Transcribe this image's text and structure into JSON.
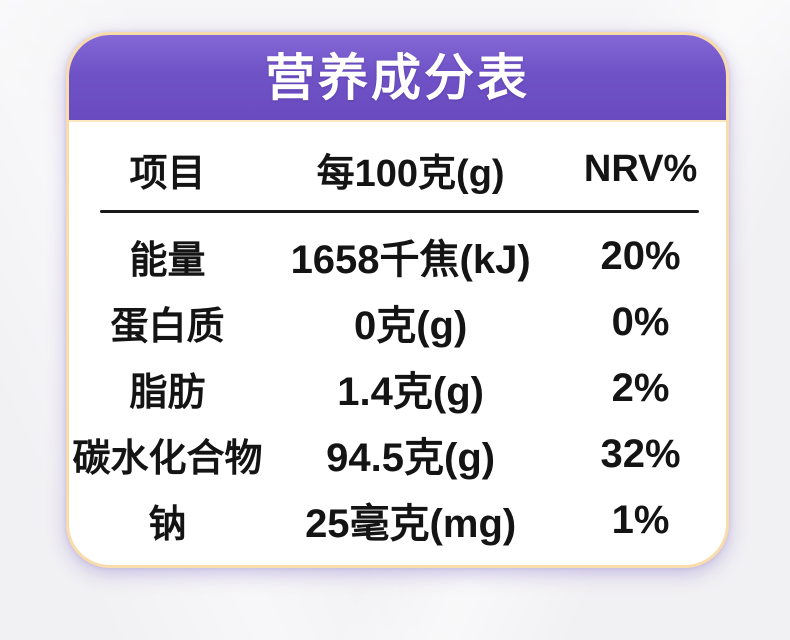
{
  "header": {
    "title": "营养成分表"
  },
  "table": {
    "columns": {
      "item": "项目",
      "per100g": "每100克(g)",
      "nrv": "NRV%"
    },
    "rows": [
      {
        "item": "能量",
        "amount": "1658千焦(kJ)",
        "nrv": "20%"
      },
      {
        "item": "蛋白质",
        "amount": "0克(g)",
        "nrv": "0%"
      },
      {
        "item": "脂肪",
        "amount": "1.4克(g)",
        "nrv": "2%"
      },
      {
        "item": "碳水化合物",
        "amount": "94.5克(g)",
        "nrv": "32%"
      },
      {
        "item": "钠",
        "amount": "25毫克(mg)",
        "nrv": "1%"
      }
    ]
  },
  "colors": {
    "header_purple_top": "#8468d6",
    "header_purple_bottom": "#6a4cc0",
    "card_border_gold": "#f9dcab",
    "card_background": "#ffffff",
    "page_background": "#f1f0f3",
    "text": "#141414"
  }
}
